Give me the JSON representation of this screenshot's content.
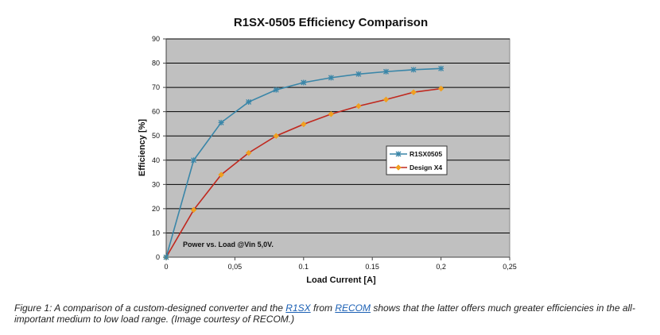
{
  "chart_data": {
    "type": "line",
    "title": "R1SX-0505 Efficiency Comparison",
    "xlabel": "Load Current [A]",
    "ylabel": "Efficiency [%]",
    "xlim": [
      0,
      0.25
    ],
    "ylim": [
      0,
      90
    ],
    "x_ticks": [
      "0",
      "0,05",
      "0.1",
      "0.15",
      "0,2",
      "0,25"
    ],
    "y_ticks": [
      "0",
      "10",
      "20",
      "30",
      "40",
      "50",
      "60",
      "70",
      "80",
      "90"
    ],
    "grid": "horizontal",
    "legend_position": "right-middle",
    "annotation": "Power vs. Load @Vin 5,0V.",
    "series": [
      {
        "name": "R1SX0505",
        "color": "#3a86a8",
        "marker": "star",
        "x": [
          0,
          0.02,
          0.04,
          0.06,
          0.08,
          0.1,
          0.12,
          0.14,
          0.16,
          0.18,
          0.2
        ],
        "y": [
          0,
          40,
          55.5,
          64,
          69,
          72,
          74,
          75.5,
          76.5,
          77.3,
          77.8
        ]
      },
      {
        "name": "Design X4",
        "color": "#c0281e",
        "marker_color": "#f0a020",
        "marker": "diamond",
        "x": [
          0,
          0.02,
          0.04,
          0.06,
          0.08,
          0.1,
          0.12,
          0.14,
          0.16,
          0.18,
          0.2
        ],
        "y": [
          0,
          19.5,
          34,
          43,
          50,
          54.8,
          59,
          62.3,
          65,
          68,
          69.5
        ]
      }
    ],
    "colors": {
      "plot_background": "#c0c0c0",
      "gridline": "#000000"
    }
  },
  "caption": {
    "part1": "Figure 1: A comparison of a custom-designed converter and the ",
    "link1": "R1SX",
    "part2": " from ",
    "link2": "RECOM",
    "part3": " shows that the latter offers much greater efficiencies in the all-important medium to low load range. (Image courtesy of RECOM.)"
  }
}
